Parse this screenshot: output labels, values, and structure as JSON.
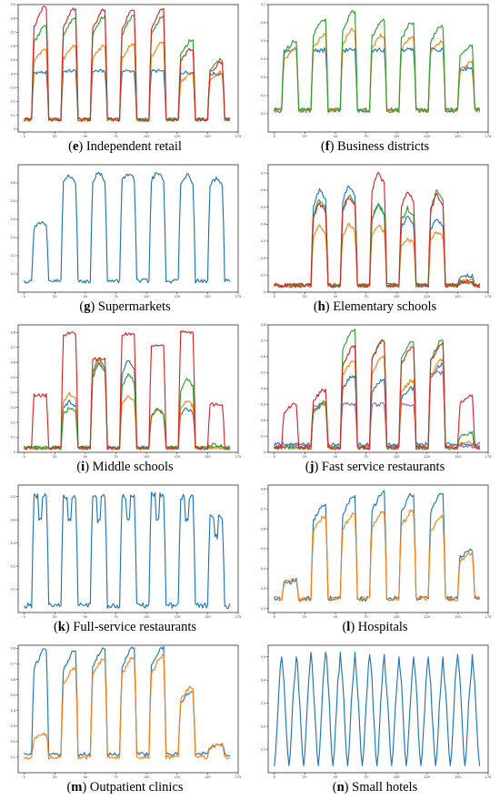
{
  "colors": {
    "blue": "#1f77b4",
    "orange": "#ff7f0e",
    "green": "#2ca02c",
    "red": "#d62728",
    "purple": "#9467bd"
  },
  "chart_data": [
    {
      "type": "line",
      "letter": "e",
      "name": "Independent retail",
      "xlim": [
        -5,
        175
      ],
      "ylim": [
        -0.02,
        0.9
      ],
      "xticks": [
        0,
        25,
        50,
        75,
        100,
        125,
        150,
        175
      ],
      "yticks": [
        0,
        0.1,
        0.2,
        0.3,
        0.4,
        0.5,
        0.6,
        0.7,
        0.8,
        0.9
      ],
      "series": [
        {
          "color": "blue",
          "base": 0.07,
          "peaks": [
            0.41,
            0.42,
            0.42,
            0.42,
            0.42,
            0.41,
            0.4
          ],
          "shape": "flat"
        },
        {
          "color": "orange",
          "base": 0.07,
          "peaks": [
            0.58,
            0.6,
            0.6,
            0.61,
            0.62,
            0.4,
            0.41
          ],
          "shape": "rise"
        },
        {
          "color": "green",
          "base": 0.07,
          "peaks": [
            0.74,
            0.8,
            0.81,
            0.81,
            0.81,
            0.64,
            0.5
          ],
          "shape": "rise"
        },
        {
          "color": "red",
          "base": 0.07,
          "peaks": [
            0.88,
            0.87,
            0.86,
            0.86,
            0.86,
            0.58,
            0.48
          ],
          "shape": "rise"
        }
      ]
    },
    {
      "type": "line",
      "letter": "f",
      "name": "Business districts",
      "xlim": [
        -5,
        175
      ],
      "ylim": [
        0,
        0.7
      ],
      "xticks": [
        0,
        25,
        50,
        75,
        100,
        125,
        150,
        175
      ],
      "yticks": [
        0.1,
        0.2,
        0.3,
        0.4,
        0.5,
        0.6,
        0.7
      ],
      "series": [
        {
          "color": "blue",
          "base": 0.12,
          "peaks": [
            0.45,
            0.45,
            0.45,
            0.45,
            0.45,
            0.45,
            0.35
          ],
          "shape": "flat"
        },
        {
          "color": "orange",
          "base": 0.12,
          "peaks": [
            0.45,
            0.53,
            0.56,
            0.53,
            0.52,
            0.5,
            0.38
          ],
          "shape": "rise"
        },
        {
          "color": "green",
          "base": 0.12,
          "peaks": [
            0.5,
            0.62,
            0.66,
            0.61,
            0.6,
            0.58,
            0.47
          ],
          "shape": "rise"
        }
      ]
    },
    {
      "type": "line",
      "letter": "g",
      "name": "Supermarkets",
      "xlim": [
        -5,
        175
      ],
      "ylim": [
        0,
        0.7
      ],
      "xticks": [
        0,
        25,
        50,
        75,
        100,
        125,
        150,
        175
      ],
      "yticks": [
        0.1,
        0.2,
        0.3,
        0.4,
        0.5,
        0.6
      ],
      "series": [
        {
          "color": "blue",
          "base": 0.06,
          "peaks": [
            0.38,
            0.64,
            0.65,
            0.65,
            0.65,
            0.64,
            0.62
          ],
          "shape": "market"
        }
      ]
    },
    {
      "type": "line",
      "letter": "h",
      "name": "Elementary schools",
      "xlim": [
        -5,
        175
      ],
      "ylim": [
        0,
        0.75
      ],
      "xticks": [
        0,
        25,
        50,
        75,
        100,
        125,
        150,
        175
      ],
      "yticks": [
        0,
        0.1,
        0.2,
        0.3,
        0.4,
        0.5,
        0.6,
        0.7
      ],
      "series": [
        {
          "color": "blue",
          "base": 0.04,
          "peaks": [
            0,
            0.61,
            0.64,
            0.52,
            0.45,
            0.44,
            0.1
          ],
          "shape": "school"
        },
        {
          "color": "orange",
          "base": 0.04,
          "peaks": [
            0,
            0.39,
            0.4,
            0.4,
            0.32,
            0.36,
            0.07
          ],
          "shape": "school"
        },
        {
          "color": "green",
          "base": 0.04,
          "peaks": [
            0,
            0.55,
            0.58,
            0.52,
            0.5,
            0.6,
            0.06
          ],
          "shape": "school"
        },
        {
          "color": "red",
          "base": 0.04,
          "peaks": [
            0,
            0.53,
            0.57,
            0.72,
            0.6,
            0.58,
            0.06
          ],
          "shape": "school"
        }
      ]
    },
    {
      "type": "line",
      "letter": "i",
      "name": "Middle schools",
      "xlim": [
        -5,
        175
      ],
      "ylim": [
        0,
        0.85
      ],
      "xticks": [
        0,
        25,
        50,
        75,
        100,
        125,
        150,
        175
      ],
      "yticks": [
        0,
        0.1,
        0.2,
        0.3,
        0.4,
        0.5,
        0.6,
        0.7,
        0.8
      ],
      "series": [
        {
          "color": "blue",
          "base": 0.03,
          "peaks": [
            0.03,
            0.35,
            0.6,
            0.63,
            0.29,
            0.3,
            0.03
          ],
          "shape": "school"
        },
        {
          "color": "orange",
          "base": 0.03,
          "peaks": [
            0.03,
            0.4,
            0.62,
            0.38,
            0.29,
            0.35,
            0.03
          ],
          "shape": "school"
        },
        {
          "color": "green",
          "base": 0.03,
          "peaks": [
            0.03,
            0.3,
            0.64,
            0.53,
            0.29,
            0.5,
            0.05
          ],
          "shape": "school"
        },
        {
          "color": "red",
          "base": 0.03,
          "peaks": [
            0.38,
            0.79,
            0.62,
            0.79,
            0.71,
            0.8,
            0.32
          ],
          "shape": "flat"
        }
      ]
    },
    {
      "type": "line",
      "letter": "j",
      "name": "Fast service restaurants",
      "xlim": [
        -5,
        175
      ],
      "ylim": [
        0,
        0.8
      ],
      "xticks": [
        0,
        25,
        50,
        75,
        100,
        125,
        150,
        175
      ],
      "yticks": [
        0,
        0.1,
        0.2,
        0.3,
        0.4,
        0.5,
        0.6,
        0.7,
        0.8
      ],
      "series": [
        {
          "color": "blue",
          "base": 0.05,
          "peaks": [
            0.05,
            0.3,
            0.48,
            0.45,
            0.4,
            0.55,
            0.05
          ],
          "shape": "rise"
        },
        {
          "color": "purple",
          "base": 0.04,
          "peaks": [
            0.04,
            0.3,
            0.3,
            0.3,
            0.3,
            0.5,
            0.04
          ],
          "shape": "flat"
        },
        {
          "color": "orange",
          "base": 0.03,
          "peaks": [
            0.03,
            0.3,
            0.58,
            0.6,
            0.45,
            0.58,
            0.06
          ],
          "shape": "rise"
        },
        {
          "color": "green",
          "base": 0.03,
          "peaks": [
            0.03,
            0.31,
            0.77,
            0.7,
            0.7,
            0.7,
            0.12
          ],
          "shape": "rise"
        },
        {
          "color": "red",
          "base": 0.03,
          "peaks": [
            0.3,
            0.39,
            0.66,
            0.7,
            0.66,
            0.68,
            0.36
          ],
          "shape": "rise"
        }
      ]
    },
    {
      "type": "line",
      "letter": "k",
      "name": "Full-service restaurants",
      "xlim": [
        -5,
        175
      ],
      "ylim": [
        0,
        0.55
      ],
      "xticks": [
        0,
        25,
        50,
        75,
        100,
        125,
        150,
        175
      ],
      "yticks": [
        0.1,
        0.2,
        0.3,
        0.4,
        0.5
      ],
      "series": [
        {
          "color": "blue",
          "base": 0.03,
          "peaks": [
            0.5,
            0.5,
            0.5,
            0.5,
            0.51,
            0.5,
            0.41
          ],
          "shape": "double"
        }
      ]
    },
    {
      "type": "line",
      "letter": "l",
      "name": "Hospitals",
      "xlim": [
        -5,
        175
      ],
      "ylim": [
        0.18,
        0.82
      ],
      "xticks": [
        0,
        25,
        50,
        75,
        100,
        125,
        150,
        175
      ],
      "yticks": [
        0.2,
        0.3,
        0.4,
        0.5,
        0.6,
        0.7,
        0.8
      ],
      "series": [
        {
          "color": "blue",
          "base": 0.25,
          "peaks": [
            0.34,
            0.72,
            0.76,
            0.78,
            0.77,
            0.78,
            0.5
          ],
          "shape": "rise"
        },
        {
          "color": "orange",
          "base": 0.25,
          "peaks": [
            0.35,
            0.66,
            0.67,
            0.68,
            0.69,
            0.66,
            0.48
          ],
          "shape": "rise"
        }
      ]
    },
    {
      "type": "line",
      "letter": "m",
      "name": "Outpatient clinics",
      "xlim": [
        -5,
        175
      ],
      "ylim": [
        0,
        0.82
      ],
      "xticks": [
        0,
        25,
        50,
        75,
        100,
        125,
        150,
        175
      ],
      "yticks": [
        0.1,
        0.2,
        0.3,
        0.4,
        0.5,
        0.6,
        0.7,
        0.8
      ],
      "series": [
        {
          "color": "blue",
          "base": 0.12,
          "peaks": [
            0.79,
            0.78,
            0.8,
            0.8,
            0.8,
            0.52,
            0.18
          ],
          "shape": "rise"
        },
        {
          "color": "orange",
          "base": 0.1,
          "peaks": [
            0.25,
            0.67,
            0.73,
            0.74,
            0.75,
            0.55,
            0.18
          ],
          "shape": "rise"
        }
      ]
    },
    {
      "type": "line",
      "letter": "n",
      "name": "Small hotels",
      "xlim": [
        -5,
        175
      ],
      "ylim": [
        0,
        0.55
      ],
      "xticks": [
        0,
        25,
        50,
        75,
        100,
        125,
        150,
        175
      ],
      "yticks": [
        0.1,
        0.2,
        0.3,
        0.4,
        0.5
      ],
      "series": [
        {
          "color": "blue",
          "base": 0.03,
          "peaks": [
            0.5,
            0.52,
            0.52,
            0.51,
            0.5,
            0.5,
            0.51
          ],
          "shape": "hotel"
        }
      ]
    }
  ]
}
